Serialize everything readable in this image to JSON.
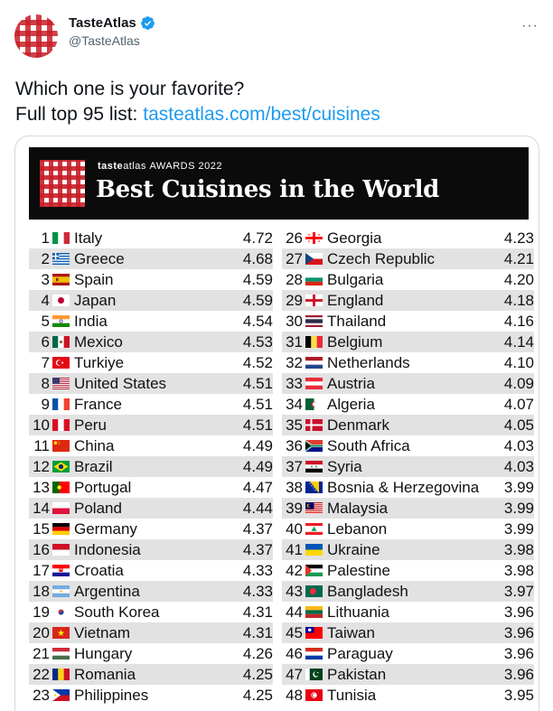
{
  "tweet": {
    "display_name": "TasteAtlas",
    "handle": "@TasteAtlas",
    "text_line1": "Which one is your favorite?",
    "text_line2_prefix": "Full top 95 list: ",
    "link": "tasteatlas.com/best/cuisines"
  },
  "icons": {
    "avatar": "checkered-tablecloth-logo",
    "verified": "verified-badge-icon",
    "more": "more-options-icon"
  },
  "colors": {
    "link": "#1d9bf0",
    "verified": "#1d9bf0",
    "banner_bg": "#0b0b0b",
    "row_stripe": "#e2e2e2"
  },
  "banner": {
    "brand_taste": "taste",
    "brand_atlas": "atlas",
    "brand_awards": "AWARDS 2022",
    "title": "Best Cuisines in the World"
  },
  "ranking_left": [
    {
      "rank": "1",
      "country": "Italy",
      "score": "4.72",
      "flag": "italy"
    },
    {
      "rank": "2",
      "country": "Greece",
      "score": "4.68",
      "flag": "greece"
    },
    {
      "rank": "3",
      "country": "Spain",
      "score": "4.59",
      "flag": "spain"
    },
    {
      "rank": "4",
      "country": "Japan",
      "score": "4.59",
      "flag": "japan"
    },
    {
      "rank": "5",
      "country": "India",
      "score": "4.54",
      "flag": "india"
    },
    {
      "rank": "6",
      "country": "Mexico",
      "score": "4.53",
      "flag": "mexico"
    },
    {
      "rank": "7",
      "country": "Turkiye",
      "score": "4.52",
      "flag": "turkiye"
    },
    {
      "rank": "8",
      "country": "United States",
      "score": "4.51",
      "flag": "united-states"
    },
    {
      "rank": "9",
      "country": "France",
      "score": "4.51",
      "flag": "france"
    },
    {
      "rank": "10",
      "country": "Peru",
      "score": "4.51",
      "flag": "peru"
    },
    {
      "rank": "11",
      "country": "China",
      "score": "4.49",
      "flag": "china"
    },
    {
      "rank": "12",
      "country": "Brazil",
      "score": "4.49",
      "flag": "brazil"
    },
    {
      "rank": "13",
      "country": "Portugal",
      "score": "4.47",
      "flag": "portugal"
    },
    {
      "rank": "14",
      "country": "Poland",
      "score": "4.44",
      "flag": "poland"
    },
    {
      "rank": "15",
      "country": "Germany",
      "score": "4.37",
      "flag": "germany"
    },
    {
      "rank": "16",
      "country": "Indonesia",
      "score": "4.37",
      "flag": "indonesia"
    },
    {
      "rank": "17",
      "country": "Croatia",
      "score": "4.33",
      "flag": "croatia"
    },
    {
      "rank": "18",
      "country": "Argentina",
      "score": "4.33",
      "flag": "argentina"
    },
    {
      "rank": "19",
      "country": "South Korea",
      "score": "4.31",
      "flag": "south-korea"
    },
    {
      "rank": "20",
      "country": "Vietnam",
      "score": "4.31",
      "flag": "vietnam"
    },
    {
      "rank": "21",
      "country": "Hungary",
      "score": "4.26",
      "flag": "hungary"
    },
    {
      "rank": "22",
      "country": "Romania",
      "score": "4.25",
      "flag": "romania"
    },
    {
      "rank": "23",
      "country": "Philippines",
      "score": "4.25",
      "flag": "philippines"
    }
  ],
  "ranking_right": [
    {
      "rank": "26",
      "country": "Georgia",
      "score": "4.23",
      "flag": "georgia"
    },
    {
      "rank": "27",
      "country": "Czech Republic",
      "score": "4.21",
      "flag": "czech-republic"
    },
    {
      "rank": "28",
      "country": "Bulgaria",
      "score": "4.20",
      "flag": "bulgaria"
    },
    {
      "rank": "29",
      "country": "England",
      "score": "4.18",
      "flag": "england"
    },
    {
      "rank": "30",
      "country": "Thailand",
      "score": "4.16",
      "flag": "thailand"
    },
    {
      "rank": "31",
      "country": "Belgium",
      "score": "4.14",
      "flag": "belgium"
    },
    {
      "rank": "32",
      "country": "Netherlands",
      "score": "4.10",
      "flag": "netherlands"
    },
    {
      "rank": "33",
      "country": "Austria",
      "score": "4.09",
      "flag": "austria"
    },
    {
      "rank": "34",
      "country": "Algeria",
      "score": "4.07",
      "flag": "algeria"
    },
    {
      "rank": "35",
      "country": "Denmark",
      "score": "4.05",
      "flag": "denmark"
    },
    {
      "rank": "36",
      "country": "South Africa",
      "score": "4.03",
      "flag": "south-africa"
    },
    {
      "rank": "37",
      "country": "Syria",
      "score": "4.03",
      "flag": "syria"
    },
    {
      "rank": "38",
      "country": "Bosnia & Herzegovina",
      "score": "3.99",
      "flag": "bosnia"
    },
    {
      "rank": "39",
      "country": "Malaysia",
      "score": "3.99",
      "flag": "malaysia"
    },
    {
      "rank": "40",
      "country": "Lebanon",
      "score": "3.99",
      "flag": "lebanon"
    },
    {
      "rank": "41",
      "country": "Ukraine",
      "score": "3.98",
      "flag": "ukraine"
    },
    {
      "rank": "42",
      "country": "Palestine",
      "score": "3.98",
      "flag": "palestine"
    },
    {
      "rank": "43",
      "country": "Bangladesh",
      "score": "3.97",
      "flag": "bangladesh"
    },
    {
      "rank": "44",
      "country": "Lithuania",
      "score": "3.96",
      "flag": "lithuania"
    },
    {
      "rank": "45",
      "country": "Taiwan",
      "score": "3.96",
      "flag": "taiwan"
    },
    {
      "rank": "46",
      "country": "Paraguay",
      "score": "3.96",
      "flag": "paraguay"
    },
    {
      "rank": "47",
      "country": "Pakistan",
      "score": "3.96",
      "flag": "pakistan"
    },
    {
      "rank": "48",
      "country": "Tunisia",
      "score": "3.95",
      "flag": "tunisia"
    }
  ]
}
